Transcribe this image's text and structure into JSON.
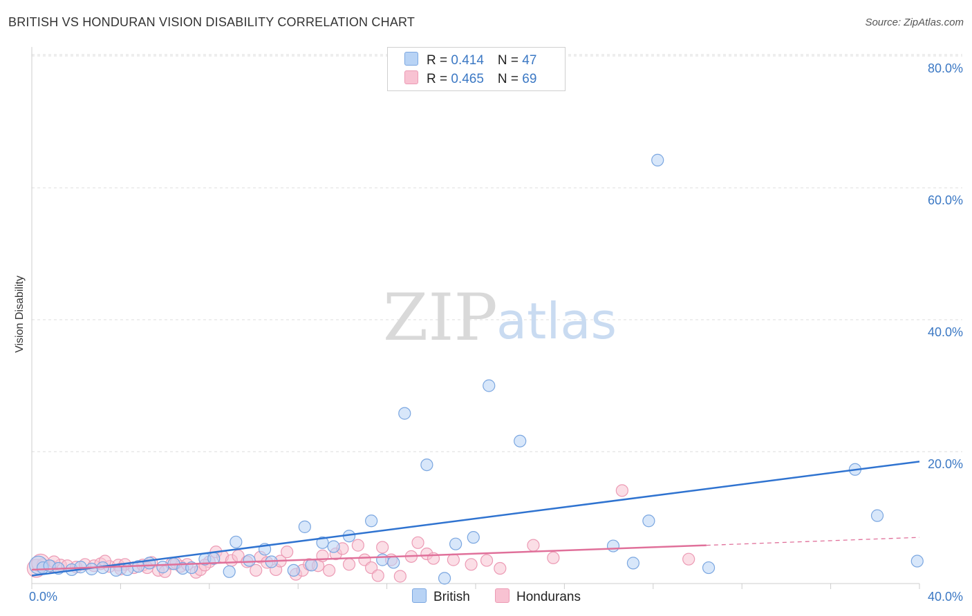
{
  "header": {
    "title": "BRITISH VS HONDURAN VISION DISABILITY CORRELATION CHART",
    "source": "Source: ZipAtlas.com"
  },
  "legend": {
    "british": {
      "r_label": "R = ",
      "r_value": "0.414",
      "n_label": "N = ",
      "n_value": "47"
    },
    "hondurans": {
      "r_label": "R = ",
      "r_value": "0.465",
      "n_label": "N = ",
      "n_value": "69"
    }
  },
  "watermark": {
    "zip": "ZIP",
    "atlas": "atlas"
  },
  "colors": {
    "british_fill": "#b8d3f5",
    "british_stroke": "#7aa6e0",
    "british_line": "#2f73d0",
    "hondurans_fill": "#f8c2d2",
    "hondurans_stroke": "#ec9ab4",
    "hondurans_line": "#e0709a",
    "label_blue": "#3b78c4"
  },
  "chart_data": {
    "type": "scatter",
    "title": "BRITISH VS HONDURAN VISION DISABILITY CORRELATION CHART",
    "xlabel": "",
    "ylabel": "Vision Disability",
    "xlim": [
      0,
      40
    ],
    "ylim": [
      0,
      83
    ],
    "x_tick_labels": [
      "0.0%",
      "40.0%"
    ],
    "y_ticks": [
      20,
      40,
      60,
      80
    ],
    "y_tick_labels": [
      "20.0%",
      "40.0%",
      "60.0%",
      "80.0%"
    ],
    "grid": true,
    "legend_position": "top-center",
    "series": [
      {
        "name": "British",
        "r": 0.414,
        "n": 47,
        "trend": {
          "x": [
            0,
            40
          ],
          "y": [
            1.2,
            18.5
          ],
          "dashed_from": null
        },
        "points": [
          [
            0.3,
            2.8
          ],
          [
            0.5,
            2.4
          ],
          [
            0.8,
            2.7
          ],
          [
            1.2,
            2.3
          ],
          [
            1.8,
            2.1
          ],
          [
            2.2,
            2.5
          ],
          [
            2.7,
            2.2
          ],
          [
            3.2,
            2.4
          ],
          [
            3.8,
            2.0
          ],
          [
            4.3,
            2.1
          ],
          [
            4.8,
            2.6
          ],
          [
            5.3,
            3.1
          ],
          [
            5.9,
            2.5
          ],
          [
            6.4,
            3.0
          ],
          [
            6.8,
            2.3
          ],
          [
            7.2,
            2.4
          ],
          [
            7.8,
            3.7
          ],
          [
            8.2,
            3.8
          ],
          [
            8.9,
            1.8
          ],
          [
            9.2,
            6.3
          ],
          [
            9.8,
            3.5
          ],
          [
            10.5,
            5.2
          ],
          [
            10.8,
            3.3
          ],
          [
            11.8,
            2.0
          ],
          [
            12.3,
            8.6
          ],
          [
            12.6,
            2.8
          ],
          [
            13.1,
            6.2
          ],
          [
            13.6,
            5.6
          ],
          [
            14.3,
            7.2
          ],
          [
            15.3,
            9.5
          ],
          [
            15.8,
            3.6
          ],
          [
            16.3,
            3.2
          ],
          [
            16.8,
            25.8
          ],
          [
            17.8,
            18.0
          ],
          [
            18.6,
            0.8
          ],
          [
            19.1,
            6.0
          ],
          [
            19.9,
            7.0
          ],
          [
            20.6,
            30.0
          ],
          [
            22.0,
            21.6
          ],
          [
            26.2,
            5.7
          ],
          [
            27.1,
            3.1
          ],
          [
            27.8,
            9.5
          ],
          [
            28.2,
            64.2
          ],
          [
            30.5,
            2.4
          ],
          [
            37.1,
            17.3
          ],
          [
            38.1,
            10.3
          ],
          [
            39.9,
            3.4
          ]
        ]
      },
      {
        "name": "Hondurans",
        "r": 0.465,
        "n": 69,
        "trend": {
          "x": [
            0,
            30.4
          ],
          "y": [
            2.1,
            5.8
          ],
          "dashed_from": 30.4,
          "dashed_to": [
            40,
            7.0
          ]
        },
        "points": [
          [
            0.2,
            2.3
          ],
          [
            0.5,
            2.9
          ],
          [
            0.9,
            2.6
          ],
          [
            1.3,
            2.8
          ],
          [
            1.6,
            2.7
          ],
          [
            2.0,
            2.5
          ],
          [
            2.4,
            2.9
          ],
          [
            2.8,
            2.7
          ],
          [
            3.1,
            3.0
          ],
          [
            3.5,
            2.6
          ],
          [
            3.9,
            2.8
          ],
          [
            4.2,
            2.9
          ],
          [
            4.6,
            2.4
          ],
          [
            5.0,
            2.8
          ],
          [
            5.4,
            3.2
          ],
          [
            5.7,
            2.0
          ],
          [
            6.0,
            1.8
          ],
          [
            6.3,
            3.0
          ],
          [
            6.7,
            2.6
          ],
          [
            7.0,
            2.9
          ],
          [
            7.4,
            1.7
          ],
          [
            7.6,
            2.1
          ],
          [
            8.0,
            3.3
          ],
          [
            8.3,
            4.8
          ],
          [
            8.6,
            4.1
          ],
          [
            9.0,
            3.5
          ],
          [
            9.3,
            4.2
          ],
          [
            9.7,
            3.3
          ],
          [
            10.1,
            2.0
          ],
          [
            10.3,
            4.0
          ],
          [
            10.6,
            3.2
          ],
          [
            11.0,
            2.1
          ],
          [
            11.2,
            3.4
          ],
          [
            11.5,
            4.8
          ],
          [
            11.9,
            1.4
          ],
          [
            12.2,
            2.0
          ],
          [
            12.5,
            2.9
          ],
          [
            12.9,
            2.7
          ],
          [
            13.1,
            4.2
          ],
          [
            13.4,
            2.0
          ],
          [
            13.7,
            4.5
          ],
          [
            14.0,
            5.3
          ],
          [
            14.3,
            2.9
          ],
          [
            14.7,
            5.8
          ],
          [
            15.0,
            3.6
          ],
          [
            15.3,
            2.4
          ],
          [
            15.6,
            1.2
          ],
          [
            15.8,
            5.5
          ],
          [
            16.2,
            3.6
          ],
          [
            16.6,
            1.1
          ],
          [
            17.1,
            4.1
          ],
          [
            17.4,
            6.2
          ],
          [
            17.8,
            4.5
          ],
          [
            18.1,
            3.8
          ],
          [
            19.0,
            3.6
          ],
          [
            19.8,
            2.9
          ],
          [
            20.5,
            3.5
          ],
          [
            21.1,
            2.3
          ],
          [
            22.6,
            5.8
          ],
          [
            23.5,
            3.9
          ],
          [
            26.6,
            14.1
          ],
          [
            29.6,
            3.7
          ],
          [
            0.4,
            3.1
          ],
          [
            1.0,
            3.3
          ],
          [
            3.3,
            3.4
          ],
          [
            4.0,
            2.2
          ],
          [
            5.2,
            2.4
          ],
          [
            6.5,
            3.1
          ],
          [
            7.8,
            2.8
          ]
        ]
      }
    ]
  }
}
